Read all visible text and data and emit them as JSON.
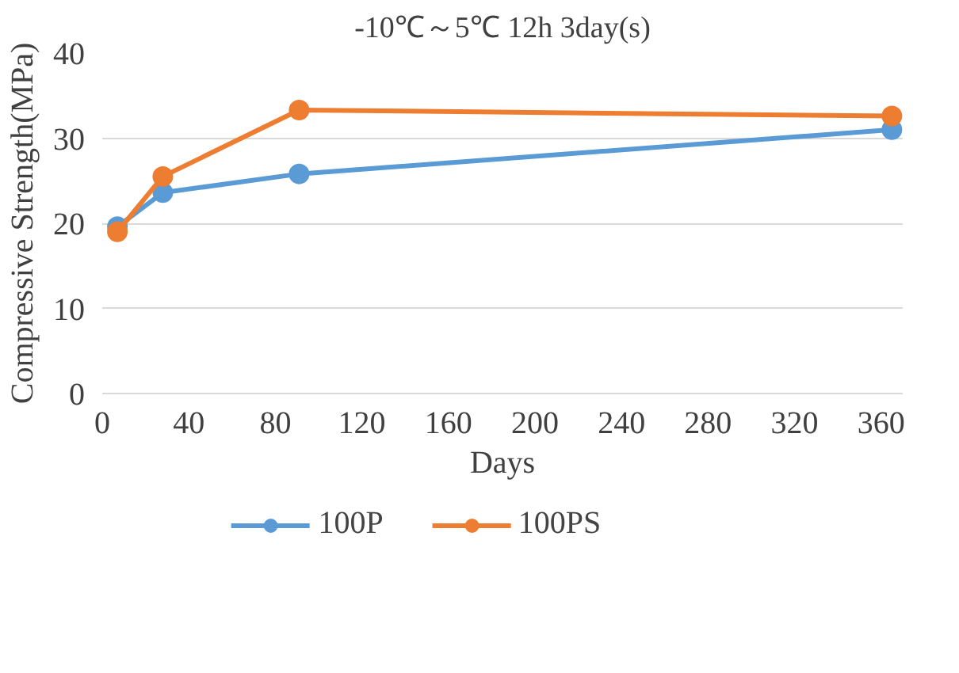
{
  "chart_data": {
    "type": "line",
    "title": "-10℃～5℃ 12h 3day(s)",
    "xlabel": "Days",
    "ylabel": "Compressive Strength(MPa)",
    "x": [
      7,
      28,
      91,
      365
    ],
    "series": [
      {
        "name": "100P",
        "color": "#5b9bd5",
        "values": [
          19.6,
          23.6,
          25.8,
          31.0
        ]
      },
      {
        "name": "100PS",
        "color": "#ed7d31",
        "values": [
          19.0,
          25.5,
          33.3,
          32.6
        ]
      }
    ],
    "xlim": [
      0,
      370
    ],
    "xticks": [
      0,
      40,
      80,
      120,
      160,
      200,
      240,
      280,
      320,
      360
    ],
    "ylim": [
      0,
      40
    ],
    "yticks": [
      0,
      10,
      20,
      30,
      40
    ],
    "grid": "y",
    "legend": "bottom",
    "marker": "circle",
    "line_style": "solid"
  }
}
